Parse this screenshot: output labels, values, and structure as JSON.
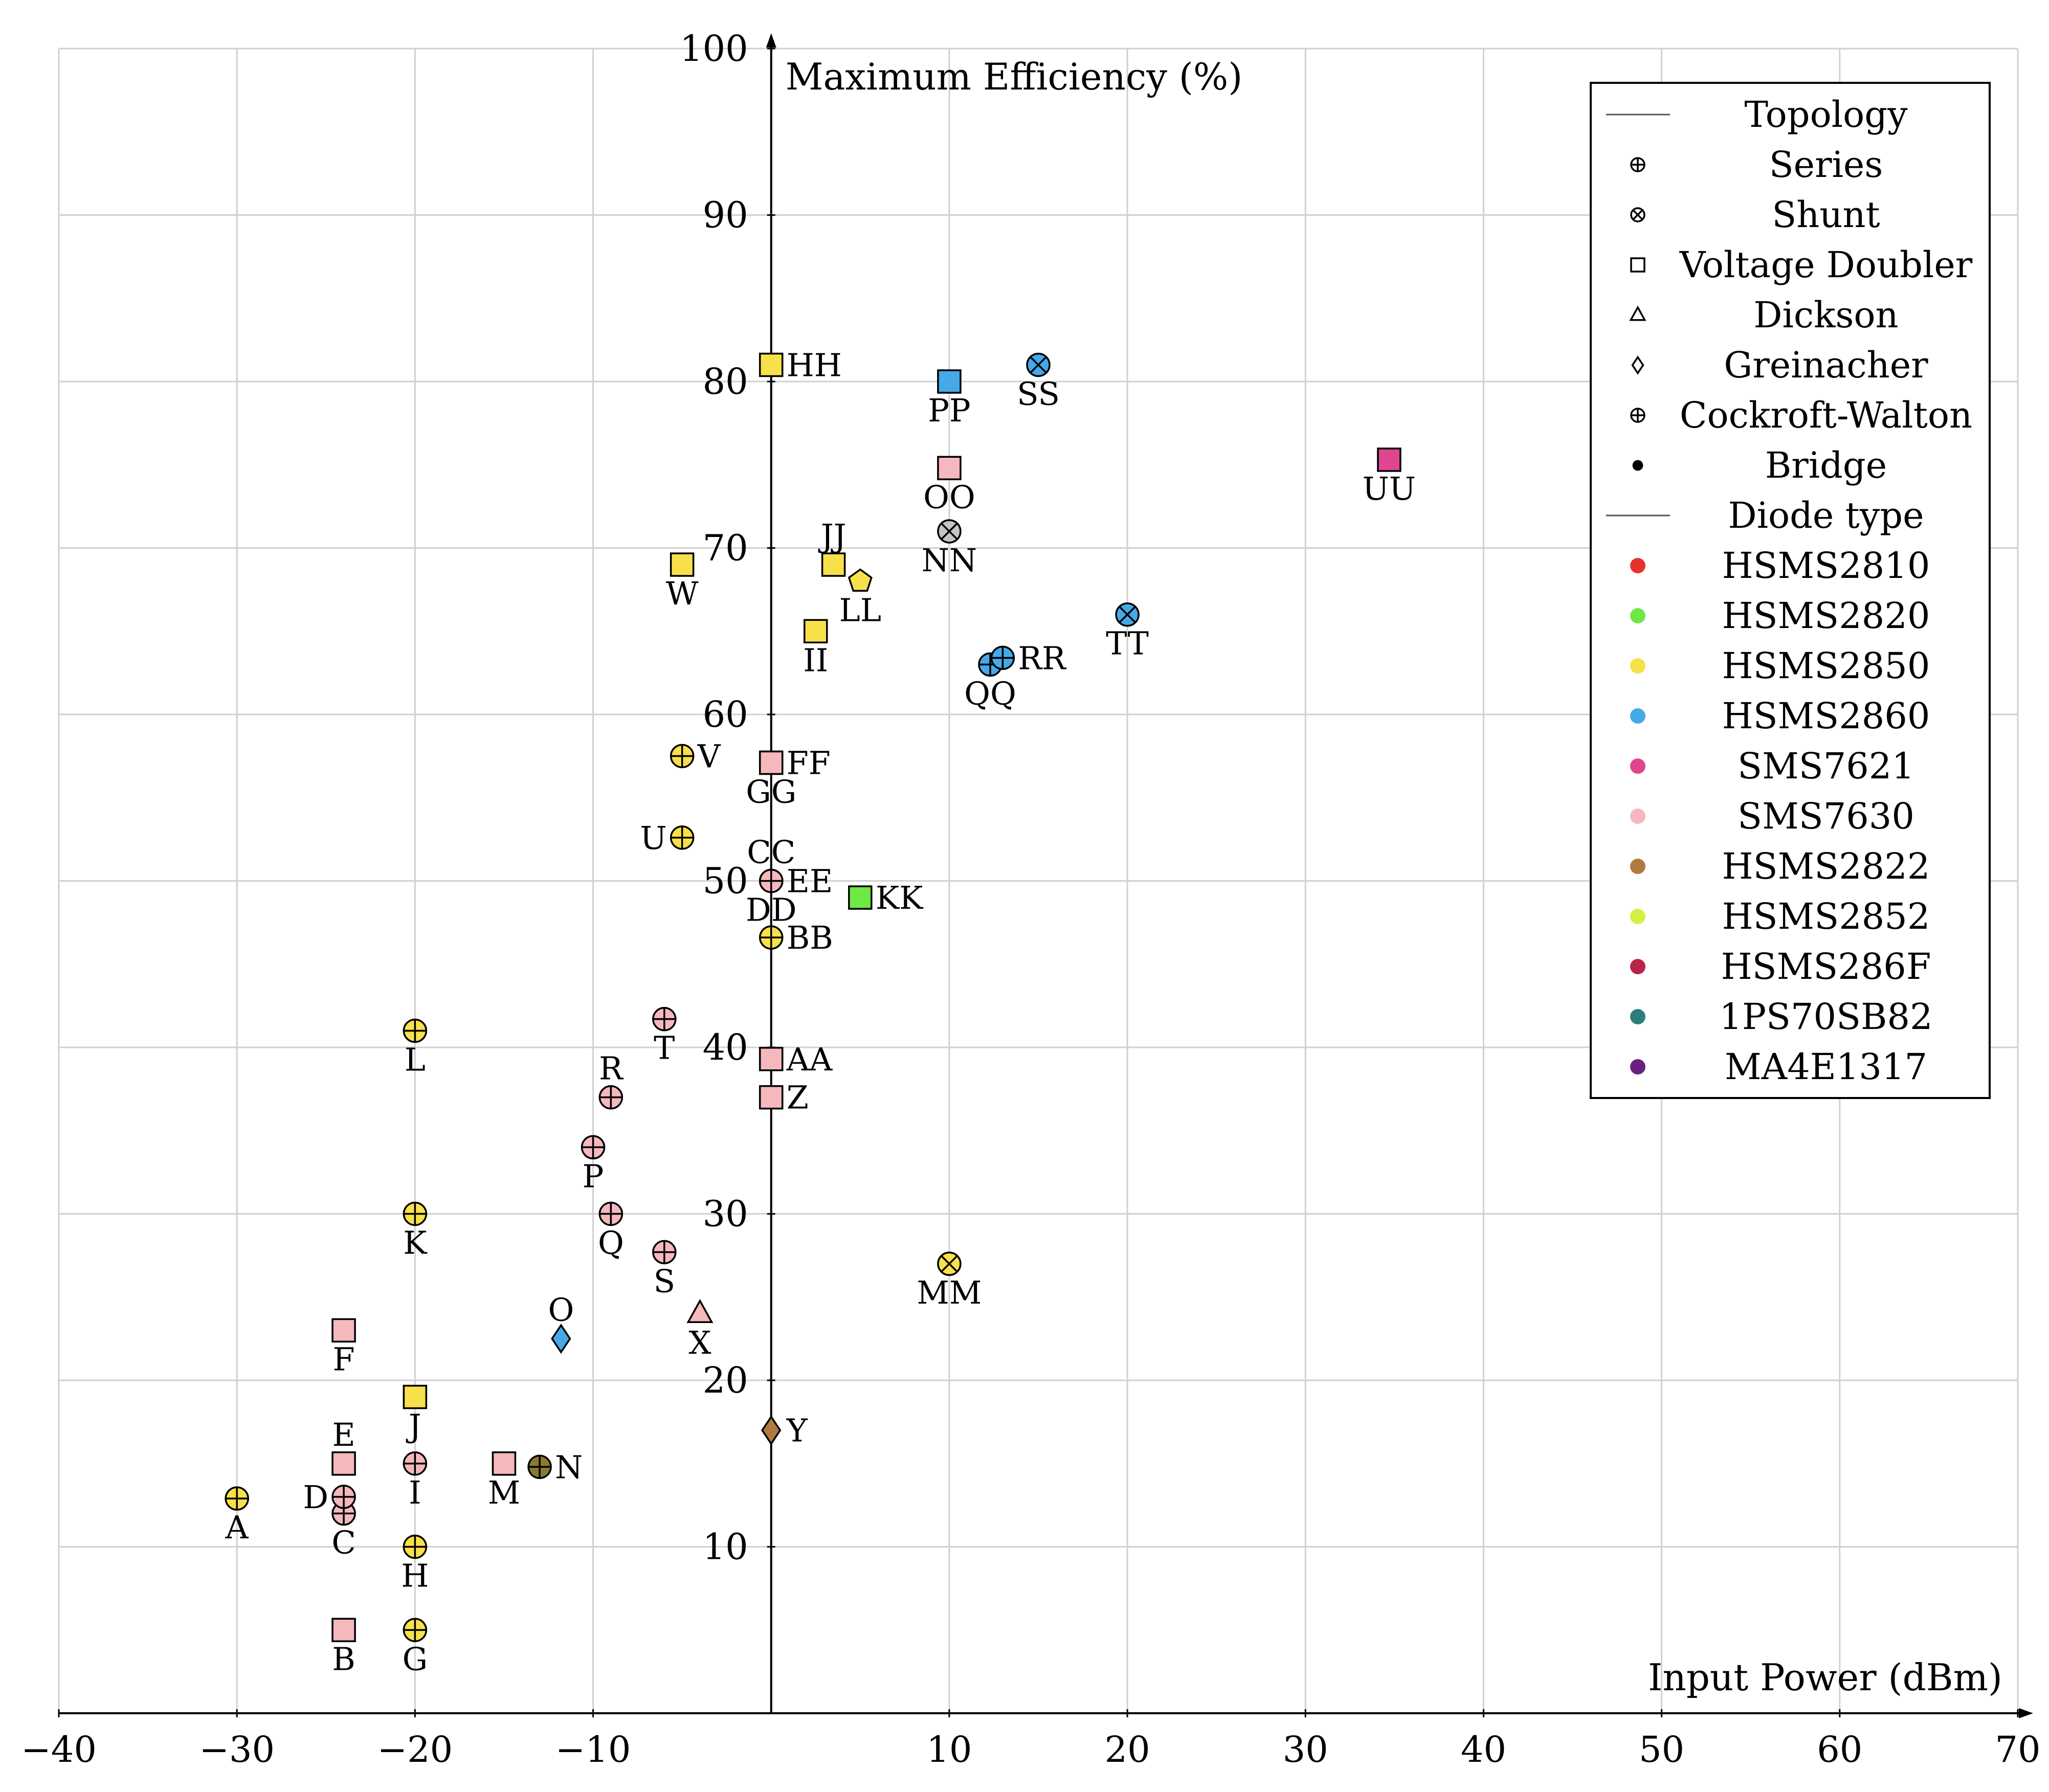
{
  "chart_data": {
    "type": "scatter",
    "xlabel": "Input Power (dBm)",
    "ylabel": "Maximum Efficiency (%)",
    "xlim": [
      -40,
      70
    ],
    "ylim": [
      0,
      100
    ],
    "xticks": [
      -40,
      -30,
      -20,
      -10,
      10,
      20,
      30,
      40,
      50,
      60,
      70
    ],
    "yticks": [
      10,
      20,
      30,
      40,
      50,
      60,
      70,
      80,
      90,
      100
    ],
    "xtick_labels": [
      "−40",
      "−30",
      "−20",
      "−10",
      "10",
      "20",
      "30",
      "40",
      "50",
      "60",
      "70"
    ],
    "grid": true,
    "legend_position": "top-right",
    "legend": {
      "topology_header": "Topology",
      "topologies": [
        {
          "name": "Series",
          "marker": "circle-plus"
        },
        {
          "name": "Shunt",
          "marker": "circle-x"
        },
        {
          "name": "Voltage Doubler",
          "marker": "square"
        },
        {
          "name": "Dickson",
          "marker": "triangle"
        },
        {
          "name": "Greinacher",
          "marker": "diamond"
        },
        {
          "name": "Cockroft-Walton",
          "marker": "circle-plus"
        },
        {
          "name": "Bridge",
          "marker": "filled-circle"
        }
      ],
      "diode_header": "Diode type",
      "diodes": [
        {
          "name": "HSMS2810",
          "color": "#e8302a"
        },
        {
          "name": "HSMS2820",
          "color": "#6ee845"
        },
        {
          "name": "HSMS2850",
          "color": "#f7e04a"
        },
        {
          "name": "HSMS2860",
          "color": "#45a9e8"
        },
        {
          "name": "SMS7621",
          "color": "#e0468f"
        },
        {
          "name": "SMS7630",
          "color": "#f4b8bd"
        },
        {
          "name": "HSMS2822",
          "color": "#b07a3e"
        },
        {
          "name": "HSMS2852",
          "color": "#d6f040"
        },
        {
          "name": "HSMS286F",
          "color": "#b82448"
        },
        {
          "name": "1PS70SB82",
          "color": "#2e7d7d"
        },
        {
          "name": "MA4E1317",
          "color": "#6a2080"
        }
      ]
    },
    "points": [
      {
        "label": "A",
        "x": -30,
        "y": 12.9,
        "marker": "circle-plus",
        "color": "#f7e04a",
        "pos": "below"
      },
      {
        "label": "B",
        "x": -24,
        "y": 5,
        "marker": "square",
        "color": "#f4b8bd",
        "pos": "below"
      },
      {
        "label": "C",
        "x": -24,
        "y": 12,
        "marker": "circle-plus",
        "color": "#f4b8bd",
        "pos": "below"
      },
      {
        "label": "D",
        "x": -24,
        "y": 13,
        "marker": "circle-plus",
        "color": "#f4b8bd",
        "pos": "left"
      },
      {
        "label": "E",
        "x": -24,
        "y": 15,
        "marker": "square",
        "color": "#f4b8bd",
        "pos": "above"
      },
      {
        "label": "F",
        "x": -24,
        "y": 23,
        "marker": "square",
        "color": "#f4b8bd",
        "pos": "below"
      },
      {
        "label": "G",
        "x": -20,
        "y": 5,
        "marker": "circle-plus",
        "color": "#f7e04a",
        "pos": "below"
      },
      {
        "label": "H",
        "x": -20,
        "y": 10,
        "marker": "circle-plus",
        "color": "#f7e04a",
        "pos": "below"
      },
      {
        "label": "I",
        "x": -20,
        "y": 15,
        "marker": "circle-plus",
        "color": "#f4b8bd",
        "pos": "below"
      },
      {
        "label": "J",
        "x": -20,
        "y": 19,
        "marker": "square",
        "color": "#f7e04a",
        "pos": "below"
      },
      {
        "label": "K",
        "x": -20,
        "y": 30,
        "marker": "circle-plus",
        "color": "#f7e04a",
        "pos": "below"
      },
      {
        "label": "L",
        "x": -20,
        "y": 41,
        "marker": "circle-plus",
        "color": "#f7e04a",
        "pos": "below"
      },
      {
        "label": "M",
        "x": -15,
        "y": 15,
        "marker": "square",
        "color": "#f4b8bd",
        "pos": "below"
      },
      {
        "label": "N",
        "x": -13,
        "y": 14.8,
        "marker": "circle-plus",
        "color": "#8a7a30",
        "pos": "right"
      },
      {
        "label": "O",
        "x": -11.8,
        "y": 22.5,
        "marker": "diamond",
        "color": "#45a9e8",
        "pos": "above"
      },
      {
        "label": "P",
        "x": -10,
        "y": 34,
        "marker": "circle-plus",
        "color": "#f4b8bd",
        "pos": "below"
      },
      {
        "label": "Q",
        "x": -9,
        "y": 30,
        "marker": "circle-plus",
        "color": "#f4b8bd",
        "pos": "below"
      },
      {
        "label": "R",
        "x": -9,
        "y": 37,
        "marker": "circle-plus",
        "color": "#f4b8bd",
        "pos": "above"
      },
      {
        "label": "S",
        "x": -6,
        "y": 27.7,
        "marker": "circle-plus",
        "color": "#f4b8bd",
        "pos": "below"
      },
      {
        "label": "T",
        "x": -6,
        "y": 41.7,
        "marker": "circle-plus",
        "color": "#f4b8bd",
        "pos": "below"
      },
      {
        "label": "U",
        "x": -5,
        "y": 52.6,
        "marker": "circle-plus",
        "color": "#f7e04a",
        "pos": "left"
      },
      {
        "label": "V",
        "x": -5,
        "y": 57.5,
        "marker": "circle-plus",
        "color": "#f7e04a",
        "pos": "right"
      },
      {
        "label": "W",
        "x": -5,
        "y": 69,
        "marker": "square",
        "color": "#f7e04a",
        "pos": "below"
      },
      {
        "label": "X",
        "x": -4,
        "y": 24,
        "marker": "triangle",
        "color": "#f4b8bd",
        "pos": "below"
      },
      {
        "label": "Y",
        "x": 0,
        "y": 17,
        "marker": "diamond",
        "color": "#b07a3e",
        "pos": "right"
      },
      {
        "label": "Z",
        "x": 0,
        "y": 37,
        "marker": "square",
        "color": "#f4b8bd",
        "pos": "right"
      },
      {
        "label": "AA",
        "x": 0,
        "y": 39.3,
        "marker": "square",
        "color": "#f4b8bd",
        "pos": "right"
      },
      {
        "label": "BB",
        "x": 0,
        "y": 46.6,
        "marker": "circle-plus",
        "color": "#f7e04a",
        "pos": "right"
      },
      {
        "label": "CC",
        "x": 0,
        "y": 50,
        "marker": "circle-plus",
        "color": "#f4b8bd",
        "pos": "above"
      },
      {
        "label": "DD",
        "x": 0,
        "y": 50,
        "marker": "circle-plus",
        "color": "#f4b8bd",
        "pos": "below"
      },
      {
        "label": "EE",
        "x": 0,
        "y": 50,
        "marker": "circle-plus",
        "color": "#f4b8bd",
        "pos": "right"
      },
      {
        "label": "FF",
        "x": 0,
        "y": 57.1,
        "marker": "square",
        "color": "#f4b8bd",
        "pos": "right"
      },
      {
        "label": "GG",
        "x": 0,
        "y": 57.1,
        "marker": "square",
        "color": "#f4b8bd",
        "pos": "below"
      },
      {
        "label": "HH",
        "x": 0,
        "y": 81,
        "marker": "square",
        "color": "#f7e04a",
        "pos": "right"
      },
      {
        "label": "II",
        "x": 2.5,
        "y": 65,
        "marker": "square",
        "color": "#f7e04a",
        "pos": "below"
      },
      {
        "label": "JJ",
        "x": 3.5,
        "y": 69,
        "marker": "square",
        "color": "#f7e04a",
        "pos": "above"
      },
      {
        "label": "KK",
        "x": 5,
        "y": 49,
        "marker": "square",
        "color": "#6ee845",
        "pos": "right"
      },
      {
        "label": "LL",
        "x": 5,
        "y": 68,
        "marker": "pentagon",
        "color": "#f7e04a",
        "pos": "below"
      },
      {
        "label": "MM",
        "x": 10,
        "y": 27,
        "marker": "circle-x",
        "color": "#f7e04a",
        "pos": "below"
      },
      {
        "label": "NN",
        "x": 10,
        "y": 71,
        "marker": "circle-x",
        "color": "#c4c4c4",
        "pos": "below"
      },
      {
        "label": "OO",
        "x": 10,
        "y": 74.8,
        "marker": "square",
        "color": "#f4b8bd",
        "pos": "below"
      },
      {
        "label": "PP",
        "x": 10,
        "y": 80,
        "marker": "square",
        "color": "#45a9e8",
        "pos": "below"
      },
      {
        "label": "QQ",
        "x": 12.3,
        "y": 63,
        "marker": "circle-plus",
        "color": "#45a9e8",
        "pos": "below"
      },
      {
        "label": "RR",
        "x": 13,
        "y": 63.4,
        "marker": "circle-plus",
        "color": "#45a9e8",
        "pos": "right"
      },
      {
        "label": "SS",
        "x": 15,
        "y": 81,
        "marker": "circle-x",
        "color": "#45a9e8",
        "pos": "below"
      },
      {
        "label": "TT",
        "x": 20,
        "y": 66,
        "marker": "circle-x",
        "color": "#45a9e8",
        "pos": "below"
      },
      {
        "label": "UU",
        "x": 34.7,
        "y": 75.3,
        "marker": "square",
        "color": "#e0468f",
        "pos": "below"
      }
    ]
  }
}
